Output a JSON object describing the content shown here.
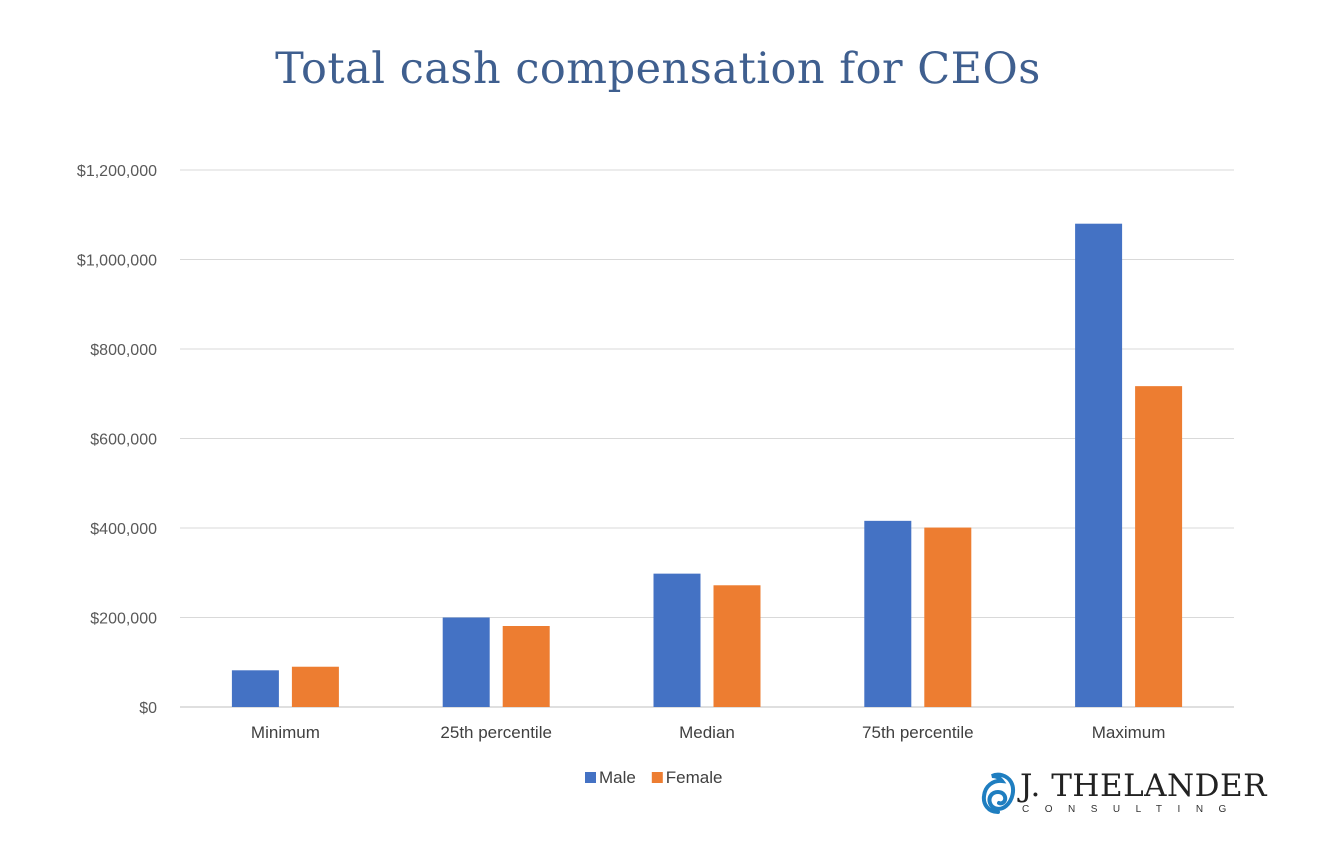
{
  "chart_data": {
    "type": "bar",
    "title": "Total cash compensation for CEOs",
    "xlabel": "",
    "ylabel": "",
    "categories": [
      "Minimum",
      "25th percentile",
      "Median",
      "75th percentile",
      "Maximum"
    ],
    "series": [
      {
        "name": "Male",
        "color": "#4472c4",
        "values": [
          82000,
          200000,
          298000,
          416000,
          1080000
        ]
      },
      {
        "name": "Female",
        "color": "#ed7d31",
        "values": [
          90000,
          181000,
          272000,
          401000,
          717000
        ]
      }
    ],
    "ylim": [
      0,
      1200000
    ],
    "yticks": [
      0,
      200000,
      400000,
      600000,
      800000,
      1000000,
      1200000
    ],
    "ytick_labels": [
      "$0",
      "$200,000",
      "$400,000",
      "$600,000",
      "$800,000",
      "$1,000,000",
      "$1,200,000"
    ],
    "grid": true,
    "legend": "bottom-center"
  },
  "logo": {
    "name": "J. THELANDER",
    "subtitle": "CONSULTING"
  }
}
